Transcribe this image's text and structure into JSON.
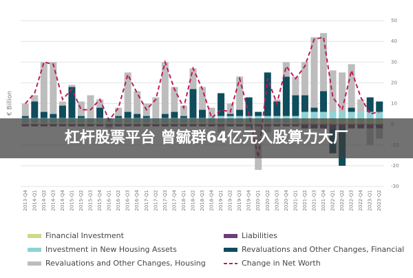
{
  "chart_data": {
    "type": "bar",
    "y_label": "€ Billion",
    "categories": [
      "2013-Q4",
      "2014-Q1",
      "2014-Q2",
      "2014-Q3",
      "2014-Q4",
      "2015-Q1",
      "2015-Q2",
      "2015-Q3",
      "2015-Q4",
      "2016-Q1",
      "2016-Q2",
      "2016-Q3",
      "2016-Q4",
      "2017-Q1",
      "2017-Q2",
      "2017-Q3",
      "2017-Q4",
      "2018-Q1",
      "2018-Q2",
      "2018-Q3",
      "2018-Q4",
      "2019-Q1",
      "2019-Q2",
      "2019-Q3",
      "2019-Q4",
      "2020-Q1",
      "2020-Q2",
      "2020-Q3",
      "2020-Q4",
      "2021-Q1",
      "2021-Q2",
      "2021-Q3",
      "2021-Q4",
      "2022-Q1",
      "2022-Q2",
      "2022-Q3",
      "2022-Q4",
      "2023-Q1",
      "2023-Q2"
    ],
    "series": [
      {
        "name": "Financial Investment",
        "color": "#cbdb8c",
        "values": [
          1,
          1,
          1,
          1,
          1,
          1,
          1,
          1,
          1,
          1,
          1,
          1,
          1,
          1,
          1,
          1,
          1,
          1,
          1,
          1,
          1,
          1,
          1,
          1,
          1,
          1,
          1,
          1,
          1,
          1,
          2,
          2,
          2,
          2,
          2,
          2,
          2,
          2,
          2
        ]
      },
      {
        "name": "Liabilities",
        "color": "#6b3f7a",
        "values": [
          -1,
          -1,
          -1,
          -1,
          -1,
          -1,
          -1,
          -1,
          -1,
          -1,
          -1,
          -1,
          -1,
          -1,
          -1,
          -1,
          -1,
          -1,
          -1,
          -1,
          -1,
          -1,
          -1,
          -1,
          -1,
          -1,
          -1,
          -1,
          -1,
          -1,
          -2,
          -2,
          -2,
          -2,
          -2,
          -2,
          -2,
          -2,
          -2
        ]
      },
      {
        "name": "Investment in New Housing Assets",
        "color": "#8fd3d6",
        "values": [
          2,
          2,
          2,
          2,
          2,
          2,
          2,
          2,
          2,
          2,
          2,
          2,
          2,
          2,
          2,
          2,
          2,
          2,
          2,
          2,
          3,
          3,
          3,
          3,
          3,
          3,
          3,
          3,
          3,
          3,
          4,
          4,
          4,
          4,
          4,
          4,
          4,
          4,
          4
        ]
      },
      {
        "name": "Revaluations and Other Changes, Financial",
        "color": "#0f4c5c",
        "values": [
          1,
          8,
          3,
          2,
          6,
          15,
          1,
          0,
          5,
          0,
          1,
          3,
          2,
          1,
          0,
          2,
          3,
          1,
          14,
          4,
          0,
          11,
          1,
          3,
          9,
          2,
          21,
          7,
          19,
          10,
          8,
          2,
          10,
          -12,
          -18,
          2,
          0,
          7,
          5
        ]
      },
      {
        "name": "Revaluations and Other Changes, Housing",
        "color": "#bdbdbd",
        "values": [
          6,
          3,
          24,
          25,
          2,
          1,
          7,
          11,
          4,
          -1,
          4,
          19,
          11,
          6,
          10,
          25,
          12,
          5,
          10,
          11,
          4,
          -3,
          5,
          16,
          -2,
          -21,
          -3,
          1,
          7,
          9,
          16,
          34,
          28,
          20,
          19,
          21,
          6,
          -8,
          -5
        ]
      },
      {
        "name": "Change in Net Worth",
        "type": "line",
        "color": "#c2185b",
        "values": [
          10,
          15,
          30,
          29,
          12,
          17,
          7,
          7,
          12,
          2,
          8,
          24,
          15,
          7,
          12,
          30,
          17,
          8,
          27,
          17,
          3,
          7,
          6,
          22,
          5,
          -16,
          22,
          10,
          28,
          22,
          28,
          41,
          42,
          13,
          7,
          26,
          13,
          5,
          6
        ]
      }
    ],
    "ylim": [
      -30,
      50
    ],
    "yticks": [
      -30,
      -20,
      -10,
      0,
      10,
      20,
      30,
      40,
      50
    ],
    "grid": true
  },
  "banner": {
    "text": "杠杆股票平台 曾毓群64亿元入股算力大厂"
  }
}
